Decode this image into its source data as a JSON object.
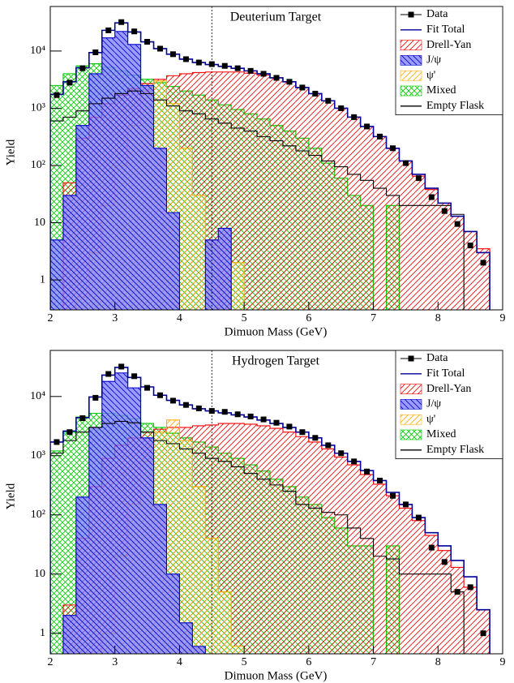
{
  "chart_data": [
    {
      "type": "histogram",
      "title": "Deuterium Target",
      "xlabel": "Dimuon Mass (GeV)",
      "ylabel": "Yield",
      "xlim": [
        2,
        9
      ],
      "xticks": [
        2,
        3,
        4,
        5,
        6,
        7,
        8,
        9
      ],
      "ylim": [
        0.3,
        60000
      ],
      "log_y": true,
      "yticks": [
        1,
        10,
        {
          "value": 100,
          "label": "10²"
        },
        {
          "value": 1000,
          "label": "10³"
        },
        {
          "value": 10000,
          "label": "10⁴"
        }
      ],
      "marker_x": 4.5,
      "legend": "upper right",
      "bins": [
        2.0,
        2.2,
        2.4,
        2.6,
        2.8,
        3.0,
        3.2,
        3.4,
        3.6,
        3.8,
        4.0,
        4.2,
        4.4,
        4.6,
        4.8,
        5.0,
        5.2,
        5.4,
        5.6,
        5.8,
        6.0,
        6.2,
        6.4,
        6.6,
        6.8,
        7.0,
        7.2,
        7.4,
        7.6,
        7.8,
        8.0,
        8.2,
        8.4,
        8.6,
        8.8
      ],
      "series": [
        {
          "name": "Data",
          "style": "points",
          "color": "#000000",
          "values": [
            1700,
            2800,
            5000,
            9500,
            23000,
            32000,
            22000,
            14500,
            11000,
            8800,
            7200,
            6300,
            5900,
            5500,
            5000,
            4500,
            4000,
            3400,
            2900,
            2300,
            1800,
            1350,
            1000,
            700,
            480,
            320,
            200,
            110,
            60,
            28,
            16,
            9.5,
            4,
            2
          ]
        },
        {
          "name": "Fit Total",
          "style": "line",
          "color": "#000099",
          "values": [
            1750,
            2900,
            5100,
            9400,
            23000,
            31000,
            21500,
            14500,
            11000,
            8800,
            7200,
            6300,
            5800,
            5400,
            5000,
            4500,
            4000,
            3400,
            2900,
            2300,
            1800,
            1350,
            1000,
            700,
            480,
            320,
            200,
            120,
            70,
            40,
            22,
            13,
            7,
            3
          ]
        },
        {
          "name": "Drell-Yan",
          "style": "hatch",
          "hatch": "/",
          "color": "#ff0000",
          "values": [
            0,
            50,
            300,
            700,
            1200,
            1700,
            2200,
            2700,
            3200,
            3700,
            4000,
            4200,
            4300,
            4300,
            4300,
            4100,
            3800,
            3400,
            2900,
            2300,
            1800,
            1350,
            1000,
            700,
            480,
            320,
            200,
            120,
            65,
            38,
            22,
            13,
            7,
            3.5
          ]
        },
        {
          "name": "J/ψ",
          "style": "hatch",
          "hatch": "\\",
          "color": "#0000cc",
          "fill": "#7a7aff",
          "values": [
            5,
            30,
            500,
            4000,
            17000,
            22000,
            13000,
            2500,
            200,
            15,
            0,
            0,
            5,
            8,
            0,
            0,
            0,
            0,
            0,
            0,
            0,
            0,
            0,
            0,
            0,
            0,
            0,
            0,
            0,
            0,
            0,
            0,
            0,
            0
          ]
        },
        {
          "name": "ψ'",
          "style": "hatch",
          "hatch": "/",
          "color": "#ffaa00",
          "values": [
            0,
            0,
            0.5,
            3,
            20,
            100,
            500,
            2000,
            3000,
            1200,
            200,
            30,
            4,
            0,
            2,
            0,
            0,
            0,
            0,
            0,
            0,
            0,
            0,
            0,
            0,
            0,
            0,
            0,
            0,
            0,
            0,
            0,
            0,
            0
          ]
        },
        {
          "name": "Mixed",
          "style": "hatch",
          "hatch": "x",
          "color": "#00cc00",
          "values": [
            2500,
            4000,
            5500,
            6000,
            5200,
            4500,
            3800,
            3200,
            2800,
            2400,
            2000,
            1700,
            1400,
            1150,
            950,
            800,
            650,
            500,
            400,
            300,
            200,
            110,
            60,
            30,
            20,
            0,
            20,
            0,
            0,
            0,
            0,
            0,
            0,
            0
          ]
        },
        {
          "name": "Empty Flask",
          "style": "line",
          "color": "#000000",
          "values": [
            600,
            700,
            900,
            1200,
            1500,
            1800,
            2000,
            1800,
            1400,
            1100,
            900,
            800,
            650,
            550,
            450,
            400,
            320,
            270,
            220,
            180,
            150,
            120,
            95,
            70,
            55,
            40,
            30,
            20,
            20,
            20,
            20,
            14,
            0,
            0
          ]
        }
      ]
    },
    {
      "type": "histogram",
      "title": "Hydrogen Target",
      "xlabel": "Dimuon Mass (GeV)",
      "ylabel": "Yield",
      "xlim": [
        2,
        9
      ],
      "xticks": [
        2,
        3,
        4,
        5,
        6,
        7,
        8,
        9
      ],
      "ylim": [
        0.45,
        60000
      ],
      "log_y": true,
      "yticks": [
        1,
        10,
        {
          "value": 100,
          "label": "10²"
        },
        {
          "value": 1000,
          "label": "10³"
        },
        {
          "value": 10000,
          "label": "10⁴"
        }
      ],
      "marker_x": 4.5,
      "legend": "upper right",
      "bins": [
        2.0,
        2.2,
        2.4,
        2.6,
        2.8,
        3.0,
        3.2,
        3.4,
        3.6,
        3.8,
        4.0,
        4.2,
        4.4,
        4.6,
        4.8,
        5.0,
        5.2,
        5.4,
        5.6,
        5.8,
        6.0,
        6.2,
        6.4,
        6.6,
        6.8,
        7.0,
        7.2,
        7.4,
        7.6,
        7.8,
        8.0,
        8.2,
        8.4,
        8.6,
        8.8
      ],
      "series": [
        {
          "name": "Data",
          "style": "points",
          "color": "#000000",
          "values": [
            1700,
            2500,
            4300,
            9500,
            24000,
            32000,
            22000,
            14000,
            10500,
            8500,
            7200,
            6300,
            5700,
            5500,
            5000,
            4600,
            4100,
            3600,
            3100,
            2500,
            2000,
            1500,
            1100,
            800,
            540,
            380,
            210,
            150,
            90,
            28,
            16,
            5,
            6,
            1
          ]
        },
        {
          "name": "Fit Total",
          "style": "line",
          "color": "#000099",
          "values": [
            1700,
            2600,
            4400,
            9800,
            23000,
            31000,
            21000,
            14500,
            10500,
            8600,
            7200,
            6200,
            5700,
            5300,
            4900,
            4500,
            4000,
            3500,
            3000,
            2500,
            2000,
            1500,
            1100,
            800,
            560,
            380,
            240,
            150,
            90,
            50,
            30,
            17,
            9,
            2.5
          ]
        },
        {
          "name": "Drell-Yan",
          "style": "hatch",
          "hatch": "/",
          "color": "#ff0000",
          "values": [
            0,
            3,
            40,
            300,
            900,
            1500,
            2000,
            2500,
            2800,
            3000,
            3000,
            3200,
            3300,
            3500,
            3500,
            3400,
            3200,
            2900,
            2500,
            2100,
            1700,
            1300,
            950,
            700,
            480,
            330,
            210,
            130,
            80,
            45,
            25,
            13,
            6,
            2.5
          ]
        },
        {
          "name": "J/ψ",
          "style": "hatch",
          "hatch": "\\",
          "color": "#0000cc",
          "fill": "#7a7aff",
          "values": [
            0,
            2,
            200,
            3000,
            18000,
            25000,
            14000,
            2000,
            150,
            10,
            1.5,
            0.6,
            0,
            0,
            0,
            0,
            0,
            0,
            0,
            0,
            0,
            0,
            0,
            0,
            0,
            0,
            0,
            0,
            0,
            0,
            0,
            0,
            0,
            0
          ]
        },
        {
          "name": "ψ'",
          "style": "hatch",
          "hatch": "/",
          "color": "#ffaa00",
          "values": [
            0,
            0,
            0,
            0,
            1,
            20,
            150,
            800,
            2500,
            4000,
            1800,
            300,
            40,
            5,
            0.6,
            0,
            0,
            0,
            0,
            0,
            0,
            0,
            0,
            0,
            0,
            0,
            0,
            0,
            0,
            0,
            0,
            0,
            0,
            0
          ]
        },
        {
          "name": "Mixed",
          "style": "hatch",
          "hatch": "x",
          "color": "#00cc00",
          "values": [
            1200,
            2500,
            4500,
            5200,
            5200,
            4800,
            4200,
            3500,
            3000,
            2400,
            2000,
            1700,
            1400,
            1100,
            900,
            700,
            550,
            400,
            300,
            200,
            150,
            90,
            60,
            30,
            30,
            0,
            30,
            0,
            0,
            0,
            0,
            0,
            0,
            0
          ]
        },
        {
          "name": "Empty Flask",
          "style": "line",
          "color": "#000000",
          "values": [
            1100,
            1800,
            2500,
            3000,
            3500,
            3800,
            3600,
            2500,
            1800,
            1600,
            1300,
            1100,
            900,
            800,
            650,
            500,
            400,
            320,
            250,
            150,
            130,
            110,
            100,
            60,
            40,
            20,
            18,
            10,
            10,
            10,
            10,
            5,
            0,
            0
          ]
        }
      ]
    }
  ]
}
